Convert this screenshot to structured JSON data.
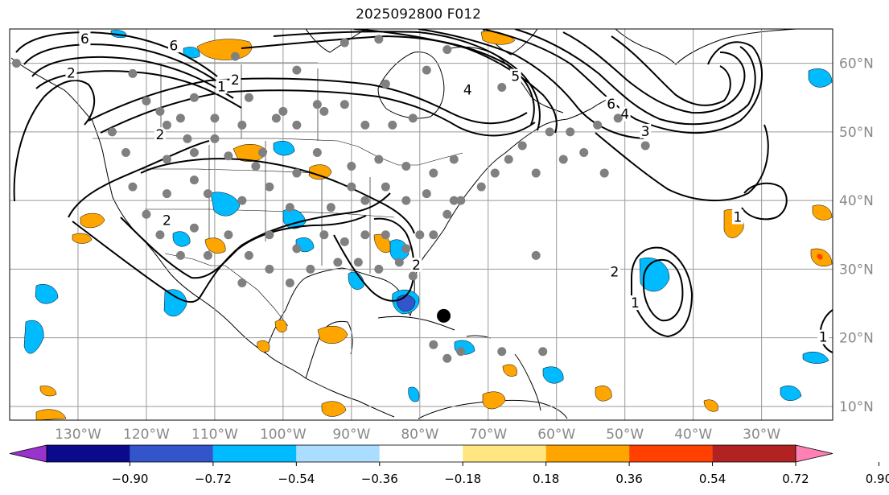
{
  "title": "2025092800 F012",
  "map": {
    "lon_min": -140,
    "lon_max": -19.6,
    "lat_min": 8,
    "lat_max": 65,
    "lon_ticks": [
      -130,
      -120,
      -110,
      -100,
      -90,
      -80,
      -70,
      -60,
      -50,
      -40,
      -30
    ],
    "lat_ticks": [
      10,
      20,
      30,
      40,
      50,
      60
    ],
    "lon_labels": [
      "130°W",
      "120°W",
      "110°W",
      "100°W",
      "90°W",
      "80°W",
      "70°W",
      "60°W",
      "50°W",
      "40°W",
      "30°W"
    ],
    "lat_labels": [
      "10°N",
      "20°N",
      "30°N",
      "40°N",
      "50°N",
      "60°N"
    ]
  },
  "contour_labels": [
    {
      "text": "6",
      "lon": -129,
      "lat": 63.5
    },
    {
      "text": "6",
      "lon": -116,
      "lat": 62.5
    },
    {
      "text": "2",
      "lon": -131,
      "lat": 58.5
    },
    {
      "text": "2",
      "lon": -107,
      "lat": 57.5
    },
    {
      "text": "1",
      "lon": -109,
      "lat": 56.5
    },
    {
      "text": "2",
      "lon": -118,
      "lat": 49.5
    },
    {
      "text": "2",
      "lon": -117,
      "lat": 37
    },
    {
      "text": "2",
      "lon": -80.5,
      "lat": 30.5
    },
    {
      "text": "5",
      "lon": -66,
      "lat": 58
    },
    {
      "text": "4",
      "lon": -73,
      "lat": 56
    },
    {
      "text": "6",
      "lon": -52,
      "lat": 54
    },
    {
      "text": "4",
      "lon": -50,
      "lat": 52.5
    },
    {
      "text": "3",
      "lon": -47,
      "lat": 50
    },
    {
      "text": "1",
      "lon": -33.5,
      "lat": 37.5
    },
    {
      "text": "2",
      "lon": -51.5,
      "lat": 29.5
    },
    {
      "text": "1",
      "lon": -48.5,
      "lat": 25
    },
    {
      "text": "1",
      "lon": -21,
      "lat": 20
    }
  ],
  "station_points": [
    [
      -139,
      60
    ],
    [
      -122,
      58.5
    ],
    [
      -107,
      61
    ],
    [
      -91,
      63
    ],
    [
      -86,
      63.5
    ],
    [
      -76,
      62
    ],
    [
      -98,
      59
    ],
    [
      -120,
      54.5
    ],
    [
      -113,
      55
    ],
    [
      -105,
      55
    ],
    [
      -100,
      53
    ],
    [
      -95,
      54
    ],
    [
      -91,
      54
    ],
    [
      -79,
      59
    ],
    [
      -118,
      53
    ],
    [
      -117,
      51
    ],
    [
      -115,
      52
    ],
    [
      -114,
      49
    ],
    [
      -110,
      49
    ],
    [
      -110,
      52
    ],
    [
      -106,
      51
    ],
    [
      -103,
      47
    ],
    [
      -101,
      52
    ],
    [
      -98,
      51
    ],
    [
      -94,
      53
    ],
    [
      -88,
      51
    ],
    [
      -84,
      51
    ],
    [
      -81,
      52
    ],
    [
      -125,
      50
    ],
    [
      -123,
      47
    ],
    [
      -117,
      46
    ],
    [
      -113,
      43
    ],
    [
      -113,
      47
    ],
    [
      -108,
      46.5
    ],
    [
      -104,
      45
    ],
    [
      -98,
      44
    ],
    [
      -95,
      47
    ],
    [
      -90,
      45
    ],
    [
      -86,
      46
    ],
    [
      -82,
      45
    ],
    [
      -78,
      44
    ],
    [
      -75,
      46
    ],
    [
      -122,
      42
    ],
    [
      -120,
      38
    ],
    [
      -117,
      41
    ],
    [
      -111,
      41
    ],
    [
      -106,
      40
    ],
    [
      -102,
      42
    ],
    [
      -99,
      39
    ],
    [
      -93,
      39
    ],
    [
      -90,
      42
    ],
    [
      -88,
      40
    ],
    [
      -85,
      42
    ],
    [
      -82,
      40
    ],
    [
      -79,
      41
    ],
    [
      -75,
      40
    ],
    [
      -118,
      35
    ],
    [
      -115,
      32
    ],
    [
      -113,
      36
    ],
    [
      -111,
      32
    ],
    [
      -108,
      35
    ],
    [
      -105,
      32
    ],
    [
      -102,
      35
    ],
    [
      -98,
      33
    ],
    [
      -94,
      35
    ],
    [
      -91,
      34
    ],
    [
      -88,
      35
    ],
    [
      -85,
      35
    ],
    [
      -82,
      33
    ],
    [
      -80,
      35
    ],
    [
      -106,
      28
    ],
    [
      -102,
      30
    ],
    [
      -99,
      28
    ],
    [
      -96,
      30
    ],
    [
      -92,
      31
    ],
    [
      -89,
      31
    ],
    [
      -86,
      30
    ],
    [
      -83,
      31
    ],
    [
      -81,
      29
    ],
    [
      -78,
      35
    ],
    [
      -76,
      38
    ],
    [
      -74,
      40
    ],
    [
      -71,
      42
    ],
    [
      -69,
      44
    ],
    [
      -67,
      46
    ],
    [
      -63,
      44
    ],
    [
      -59,
      46
    ],
    [
      -56,
      47
    ],
    [
      -53,
      44
    ],
    [
      -65,
      48
    ],
    [
      -61,
      50
    ],
    [
      -58,
      50
    ],
    [
      -54,
      51
    ],
    [
      -51,
      52
    ],
    [
      -47,
      48
    ],
    [
      -63,
      32
    ],
    [
      -78,
      19
    ],
    [
      -76,
      17
    ],
    [
      -74,
      18
    ],
    [
      -68,
      18
    ],
    [
      -62,
      18
    ],
    [
      -68,
      56.5
    ],
    [
      -85,
      57
    ]
  ],
  "hurricane_center": {
    "lon": -76.5,
    "lat": 23.2
  },
  "colorbar": {
    "tick_labels": [
      "−0.90",
      "−0.72",
      "−0.54",
      "−0.36",
      "−0.18",
      "0.18",
      "0.36",
      "0.54",
      "0.72",
      "0.90"
    ],
    "colors": [
      "#9933cc",
      "#0a0a8a",
      "#3355cc",
      "#00bbff",
      "#aaddff",
      "#ffffff",
      "#ffe680",
      "#ffa500",
      "#ff4000",
      "#b22222",
      "#ff80b3"
    ]
  }
}
